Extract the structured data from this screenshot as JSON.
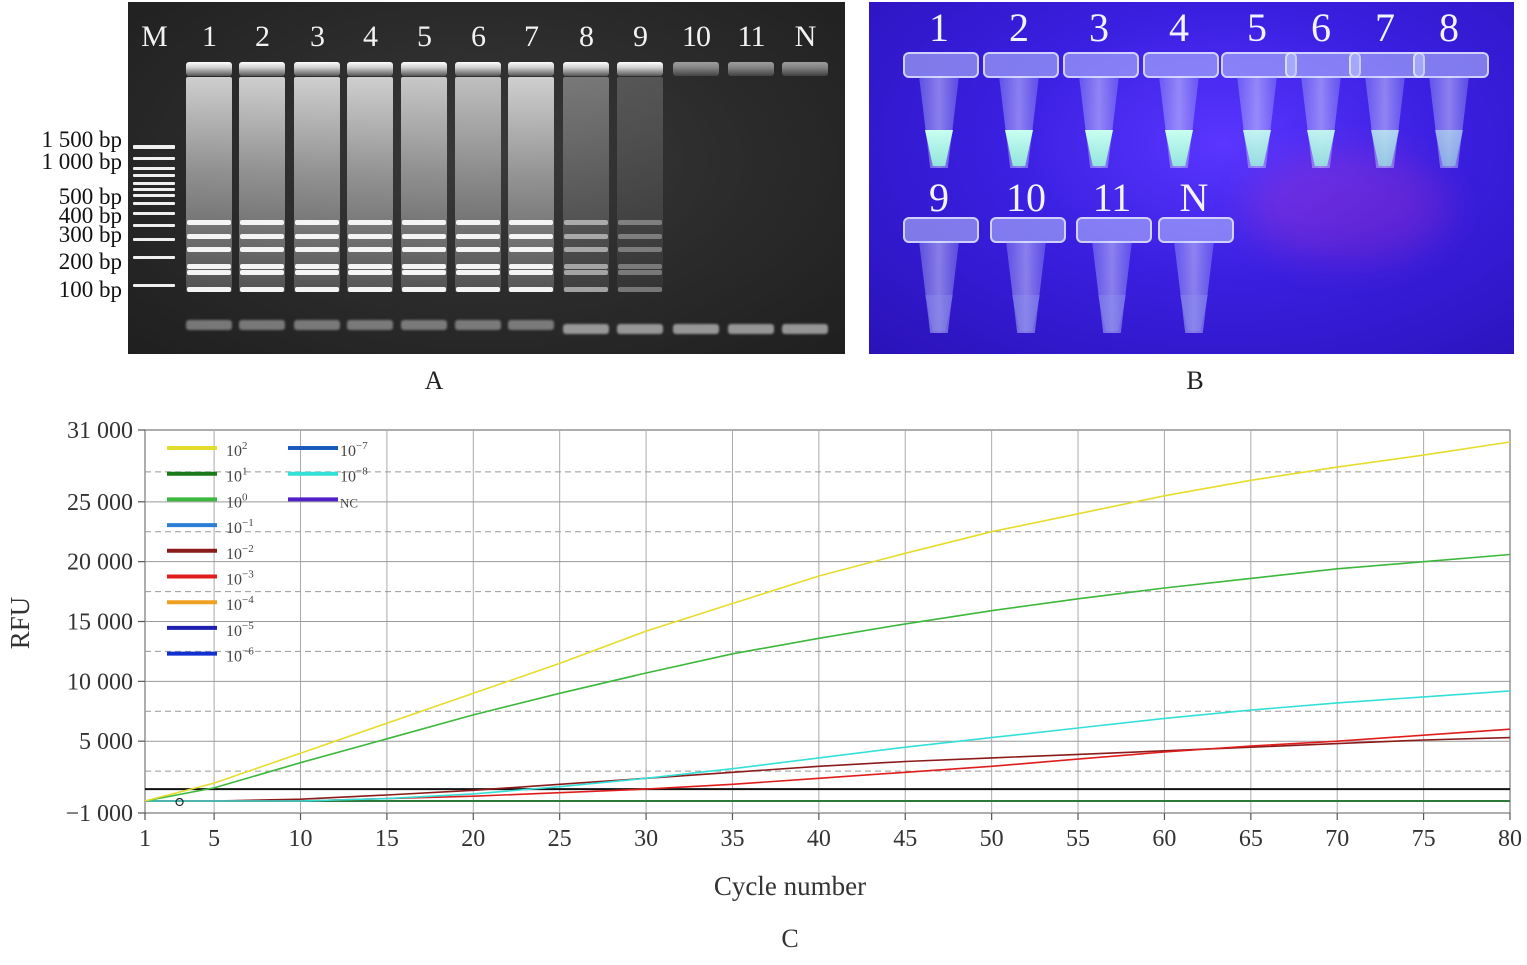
{
  "panel_a": {
    "caption": "A",
    "marker_label": "M",
    "lanes": [
      "1",
      "2",
      "3",
      "4",
      "5",
      "6",
      "7",
      "8",
      "9",
      "10",
      "11",
      "N"
    ],
    "bp_labels": [
      "1 500 bp",
      "1 000 bp",
      "500 bp",
      "400 bp",
      "300 bp",
      "200 bp",
      "100 bp"
    ]
  },
  "panel_b": {
    "caption": "B",
    "tubes_row1": [
      "1",
      "2",
      "3",
      "4",
      "5",
      "6",
      "7",
      "8"
    ],
    "tubes_row2": [
      "9",
      "10",
      "11",
      "N"
    ]
  },
  "chart_data": {
    "type": "line",
    "caption": "C",
    "xlabel": "Cycle number",
    "ylabel": "RFU",
    "xlim": [
      1,
      80
    ],
    "ylim": [
      -1000,
      31000
    ],
    "xticks": [
      "1",
      "5",
      "10",
      "15",
      "20",
      "25",
      "30",
      "35",
      "40",
      "45",
      "50",
      "55",
      "60",
      "65",
      "70",
      "75",
      "80"
    ],
    "yticks": [
      "31 000",
      "25 000",
      "20 000",
      "15 000",
      "10 000",
      "5 000",
      "−1 000"
    ],
    "ytick_values": [
      31000,
      25000,
      20000,
      15000,
      10000,
      5000,
      -1000
    ],
    "threshold": 1000,
    "grid": true,
    "legend_position": "top-left",
    "series": [
      {
        "name": "10^2",
        "base": "10",
        "exp": "2",
        "color": "#e6dc2c",
        "x": [
          1,
          5,
          10,
          15,
          20,
          25,
          30,
          35,
          40,
          45,
          50,
          55,
          60,
          65,
          70,
          75,
          80
        ],
        "y": [
          0,
          1500,
          4000,
          6500,
          9000,
          11500,
          14200,
          16500,
          18800,
          20700,
          22500,
          24000,
          25500,
          26800,
          27900,
          28900,
          30000
        ]
      },
      {
        "name": "10^1",
        "base": "10",
        "exp": "1",
        "color": "#1a7a1a",
        "x": [
          1,
          5,
          10,
          15,
          20,
          25,
          30,
          35,
          40,
          45,
          50,
          55,
          60,
          65,
          70,
          75,
          80
        ],
        "y": [
          0,
          0,
          0,
          0,
          0,
          0,
          0,
          0,
          0,
          0,
          0,
          0,
          0,
          0,
          0,
          0,
          0
        ]
      },
      {
        "name": "10^0",
        "base": "10",
        "exp": "0",
        "color": "#3cb83c",
        "x": [
          1,
          5,
          10,
          15,
          20,
          25,
          30,
          35,
          40,
          45,
          50,
          55,
          60,
          65,
          70,
          75,
          80
        ],
        "y": [
          0,
          1100,
          3200,
          5200,
          7200,
          9000,
          10700,
          12300,
          13600,
          14800,
          15900,
          16900,
          17800,
          18600,
          19400,
          20000,
          20600
        ]
      },
      {
        "name": "10^-1",
        "base": "10",
        "exp": "−1",
        "color": "#2a7fd4",
        "x": [
          1,
          5,
          10,
          15,
          20,
          25,
          30,
          35,
          40,
          45,
          50,
          55,
          60,
          65,
          70,
          75,
          80
        ],
        "y": [
          0,
          0,
          0,
          0,
          0,
          0,
          0,
          0,
          0,
          0,
          0,
          0,
          0,
          0,
          0,
          0,
          0
        ]
      },
      {
        "name": "10^-2",
        "base": "10",
        "exp": "−2",
        "color": "#8b1a1a",
        "x": [
          1,
          5,
          10,
          15,
          20,
          25,
          30,
          35,
          40,
          45,
          50,
          55,
          60,
          65,
          70,
          75,
          80
        ],
        "y": [
          0,
          0,
          150,
          500,
          900,
          1400,
          1900,
          2400,
          2900,
          3300,
          3600,
          3900,
          4200,
          4500,
          4800,
          5100,
          5300
        ]
      },
      {
        "name": "10^-3",
        "base": "10",
        "exp": "−3",
        "color": "#e01d1d",
        "x": [
          1,
          5,
          10,
          15,
          20,
          25,
          30,
          35,
          40,
          45,
          50,
          55,
          60,
          65,
          70,
          75,
          80
        ],
        "y": [
          0,
          0,
          0,
          200,
          400,
          700,
          1000,
          1400,
          1900,
          2400,
          2900,
          3500,
          4100,
          4600,
          5000,
          5500,
          6000
        ]
      },
      {
        "name": "10^-4",
        "base": "10",
        "exp": "−4",
        "color": "#f0a020",
        "x": [
          1,
          5,
          10,
          15,
          20,
          25,
          30,
          35,
          40,
          45,
          50,
          55,
          60,
          65,
          70,
          75,
          80
        ],
        "y": [
          0,
          0,
          0,
          0,
          0,
          0,
          0,
          0,
          0,
          0,
          0,
          0,
          0,
          0,
          0,
          0,
          0
        ]
      },
      {
        "name": "10^-5",
        "base": "10",
        "exp": "−5",
        "color": "#2020b0",
        "x": [
          1,
          5,
          10,
          15,
          20,
          25,
          30,
          35,
          40,
          45,
          50,
          55,
          60,
          65,
          70,
          75,
          80
        ],
        "y": [
          0,
          0,
          0,
          0,
          0,
          0,
          0,
          0,
          0,
          0,
          0,
          0,
          0,
          0,
          0,
          0,
          0
        ]
      },
      {
        "name": "10^-6",
        "base": "10",
        "exp": "−6",
        "color": "#1030d0",
        "x": [
          1,
          5,
          10,
          15,
          20,
          25,
          30,
          35,
          40,
          45,
          50,
          55,
          60,
          65,
          70,
          75,
          80
        ],
        "y": [
          0,
          0,
          0,
          0,
          0,
          0,
          0,
          0,
          0,
          0,
          0,
          0,
          0,
          0,
          0,
          0,
          0
        ]
      },
      {
        "name": "10^-7",
        "base": "10",
        "exp": "−7",
        "color": "#1a5ab8",
        "x": [
          1,
          5,
          10,
          15,
          20,
          25,
          30,
          35,
          40,
          45,
          50,
          55,
          60,
          65,
          70,
          75,
          80
        ],
        "y": [
          0,
          0,
          0,
          0,
          0,
          0,
          0,
          0,
          0,
          0,
          0,
          0,
          0,
          0,
          0,
          0,
          0
        ]
      },
      {
        "name": "10^-8",
        "base": "10",
        "exp": "−8",
        "color": "#33e0d8",
        "x": [
          1,
          5,
          10,
          15,
          20,
          25,
          30,
          35,
          40,
          45,
          50,
          55,
          60,
          65,
          70,
          75,
          80
        ],
        "y": [
          0,
          0,
          0,
          200,
          600,
          1200,
          1900,
          2700,
          3600,
          4500,
          5300,
          6100,
          6900,
          7600,
          8200,
          8700,
          9200
        ]
      },
      {
        "name": "NC",
        "base": "NC",
        "exp": "",
        "color": "#5020c8",
        "x": [
          1,
          5,
          10,
          15,
          20,
          25,
          30,
          35,
          40,
          45,
          50,
          55,
          60,
          65,
          70,
          75,
          80
        ],
        "y": [
          0,
          0,
          0,
          0,
          0,
          0,
          0,
          0,
          0,
          0,
          0,
          0,
          0,
          0,
          0,
          0,
          0
        ]
      }
    ]
  }
}
